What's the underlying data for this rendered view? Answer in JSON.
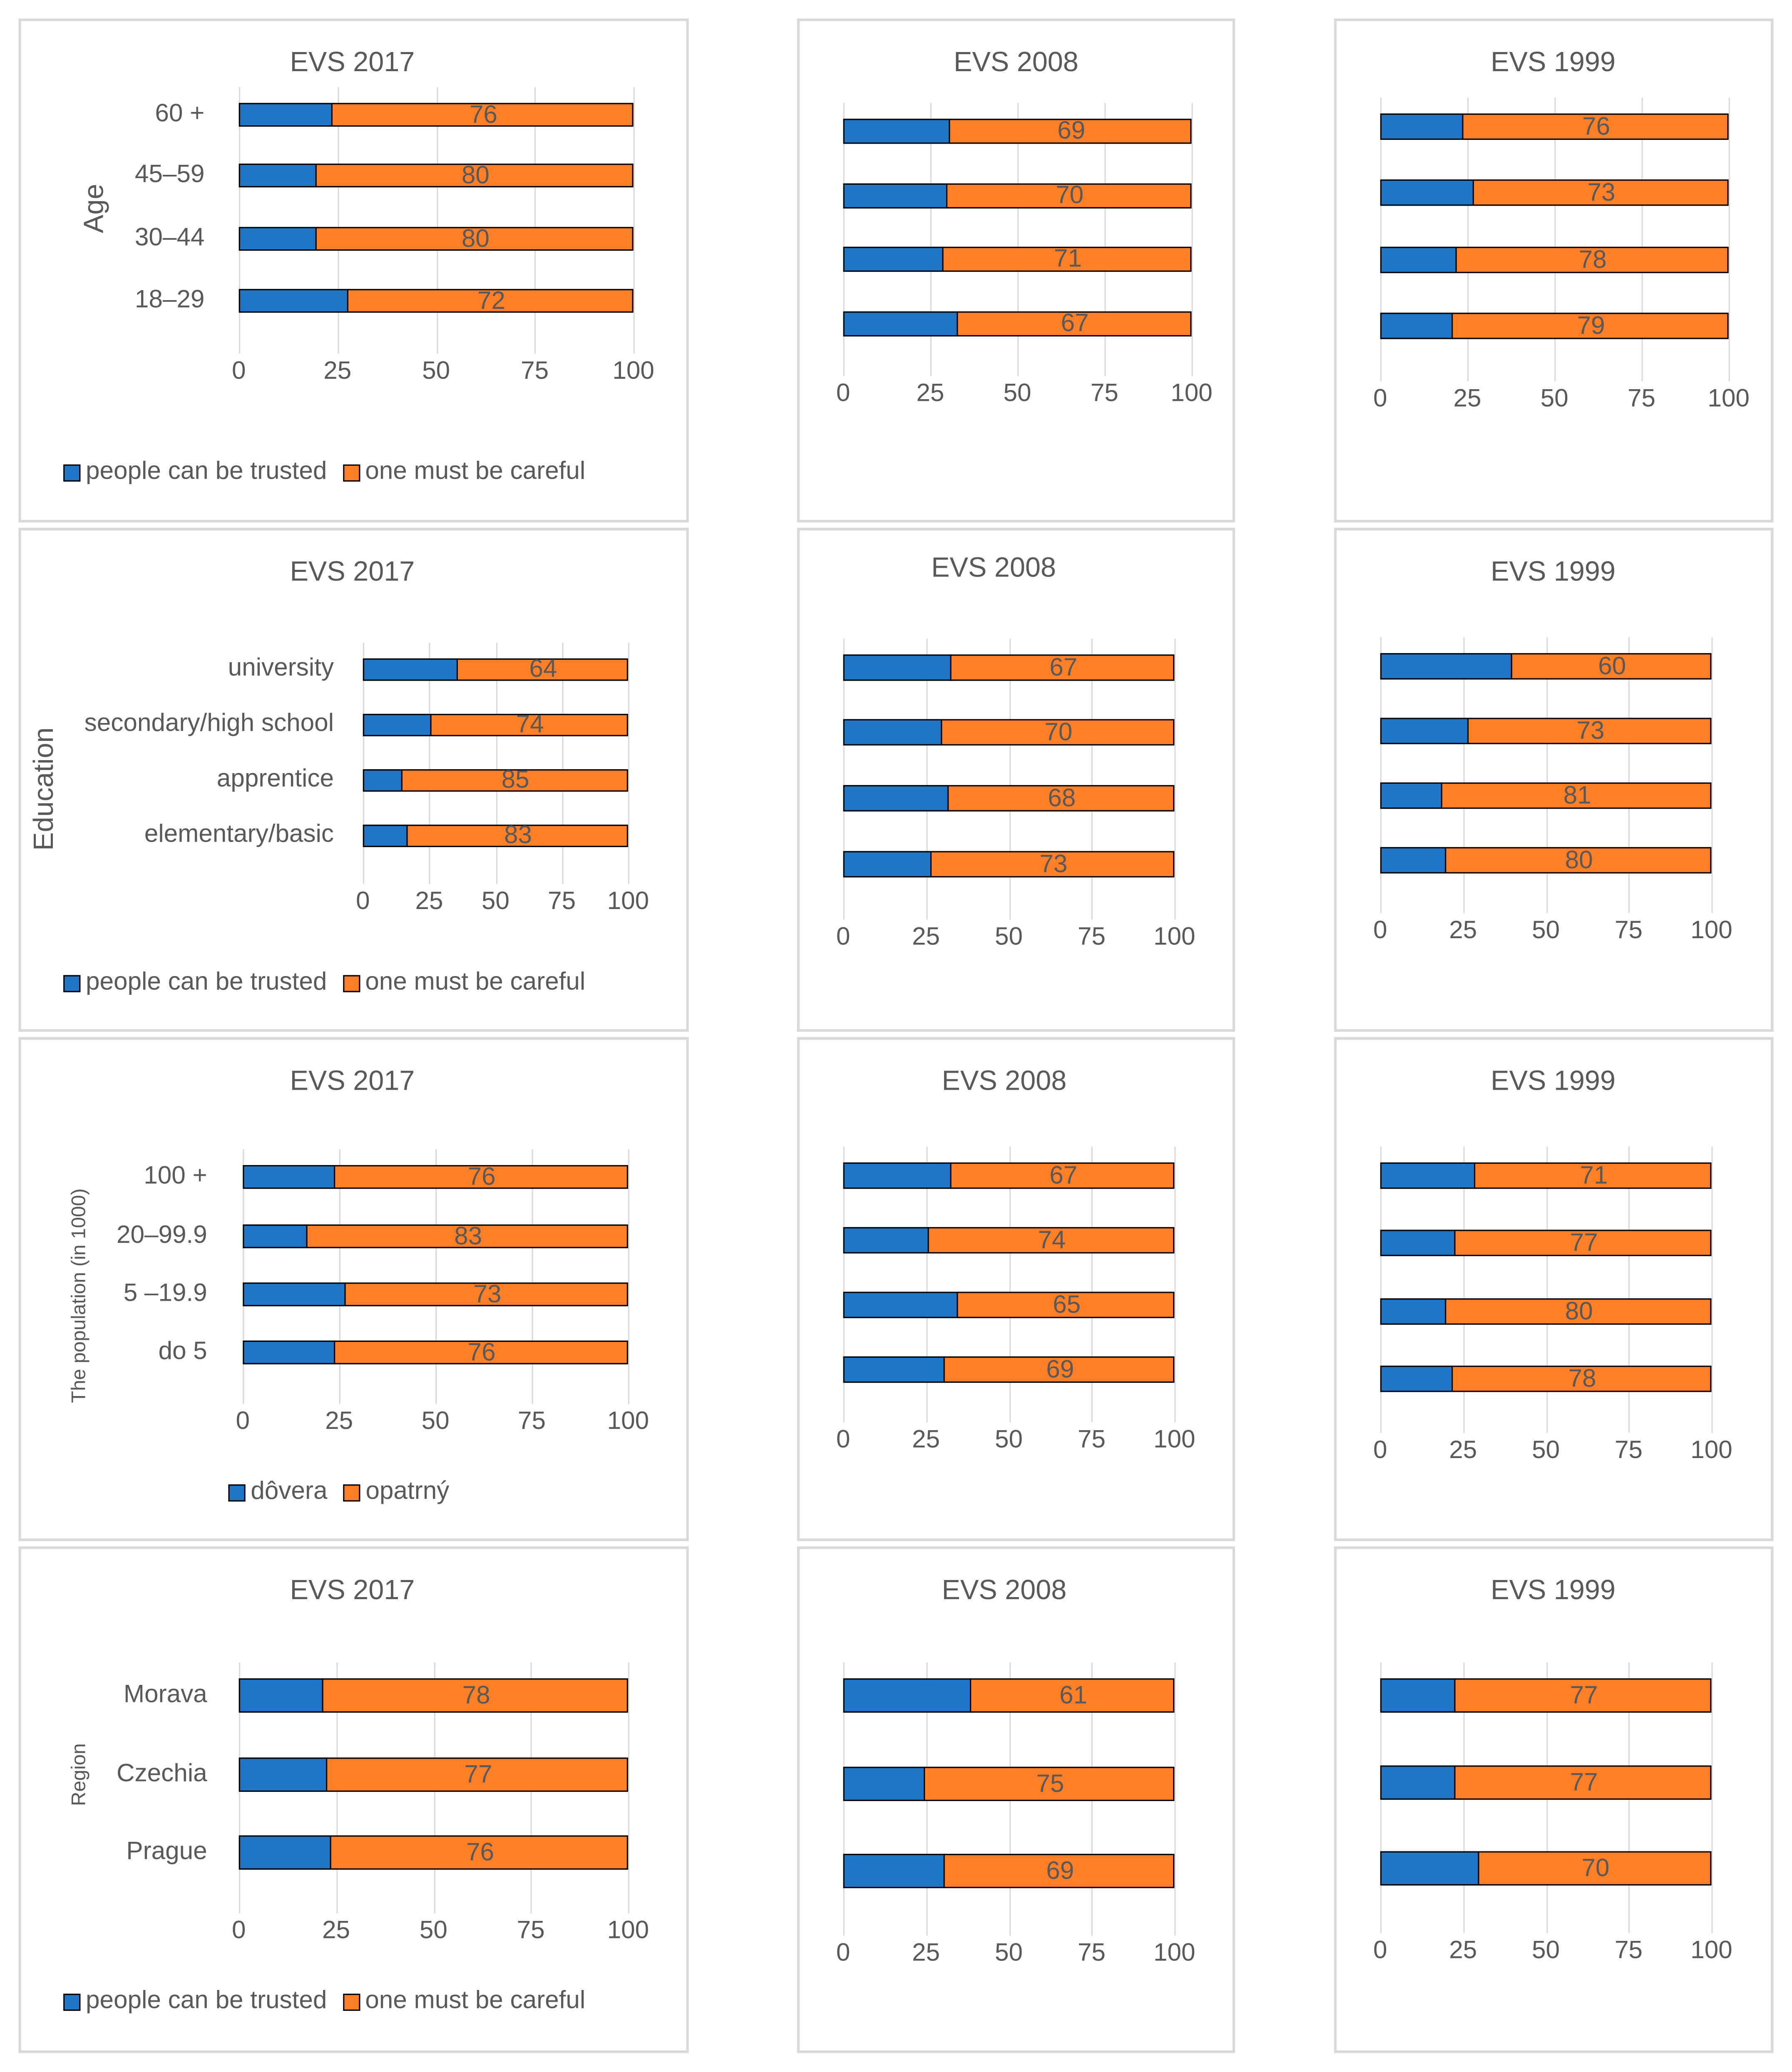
{
  "colors": {
    "trust": "#1f76c6",
    "careful": "#fe7f26"
  },
  "chart_data": [
    {
      "type": "bar",
      "stacked": true,
      "title": "EVS 2017",
      "ylabel": "Age",
      "categories": [
        "60 +",
        "45–59",
        "30–44",
        "18–29"
      ],
      "series": [
        {
          "name": "people can be trusted",
          "values": [
            24,
            20,
            20,
            28
          ]
        },
        {
          "name": "one must be careful",
          "values": [
            76,
            80,
            80,
            72
          ]
        }
      ],
      "xticks": [
        "0",
        "25",
        "50",
        "75",
        "100"
      ],
      "xlim": [
        0,
        100
      ],
      "legend": [
        "people can be trusted",
        "one must be careful"
      ]
    },
    {
      "type": "bar",
      "stacked": true,
      "title": "EVS 2008",
      "ylabel": "",
      "categories": [
        "",
        "",
        "",
        ""
      ],
      "series": [
        {
          "name": "people can be trusted",
          "values": [
            31,
            30,
            29,
            33
          ]
        },
        {
          "name": "one must be careful",
          "values": [
            69,
            70,
            71,
            67
          ]
        }
      ],
      "xticks": [
        "0",
        "25",
        "50",
        "75",
        "100"
      ],
      "xlim": [
        0,
        100
      ]
    },
    {
      "type": "bar",
      "stacked": true,
      "title": "EVS 1999",
      "ylabel": "",
      "categories": [
        "",
        "",
        "",
        ""
      ],
      "series": [
        {
          "name": "people can be trusted",
          "values": [
            24,
            27,
            22,
            21
          ]
        },
        {
          "name": "one must be careful",
          "values": [
            76,
            73,
            78,
            79
          ]
        }
      ],
      "xticks": [
        "0",
        "25",
        "50",
        "75",
        "100"
      ],
      "xlim": [
        0,
        100
      ]
    },
    {
      "type": "bar",
      "stacked": true,
      "title": "EVS 2017",
      "ylabel": "Education",
      "categories": [
        "university",
        "secondary/high school",
        "apprentice",
        "elementary/basic"
      ],
      "series": [
        {
          "name": "people can be trusted",
          "values": [
            36,
            26,
            15,
            17
          ]
        },
        {
          "name": "one must be careful",
          "values": [
            64,
            74,
            85,
            83
          ]
        }
      ],
      "xticks": [
        "0",
        "25",
        "50",
        "75",
        "100"
      ],
      "xlim": [
        0,
        100
      ],
      "legend": [
        "people can be trusted",
        "one must be careful"
      ]
    },
    {
      "type": "bar",
      "stacked": true,
      "title": "EVS 2008",
      "ylabel": "",
      "categories": [
        "",
        "",
        "",
        ""
      ],
      "series": [
        {
          "name": "people can be trusted",
          "values": [
            33,
            30,
            32,
            27
          ]
        },
        {
          "name": "one must be careful",
          "values": [
            67,
            70,
            68,
            73
          ]
        }
      ],
      "xticks": [
        "0",
        "25",
        "50",
        "75",
        "100"
      ],
      "xlim": [
        0,
        100
      ]
    },
    {
      "type": "bar",
      "stacked": true,
      "title": "EVS 1999",
      "ylabel": "",
      "categories": [
        "",
        "",
        "",
        ""
      ],
      "series": [
        {
          "name": "people can be trusted",
          "values": [
            40,
            27,
            19,
            20
          ]
        },
        {
          "name": "one must be careful",
          "values": [
            60,
            73,
            81,
            80
          ]
        }
      ],
      "xticks": [
        "0",
        "25",
        "50",
        "75",
        "100"
      ],
      "xlim": [
        0,
        100
      ]
    },
    {
      "type": "bar",
      "stacked": true,
      "title": "EVS 2017",
      "ylabel": "The population (in 1000)",
      "categories": [
        "100 +",
        "20–99.9",
        "5 –19.9",
        "do 5"
      ],
      "series": [
        {
          "name": "dôvera",
          "values": [
            24,
            17,
            27,
            24
          ]
        },
        {
          "name": "opatrný",
          "values": [
            76,
            83,
            73,
            76
          ]
        }
      ],
      "xticks": [
        "0",
        "25",
        "50",
        "75",
        "100"
      ],
      "xlim": [
        0,
        100
      ],
      "legend": [
        "dôvera",
        "opatrný"
      ]
    },
    {
      "type": "bar",
      "stacked": true,
      "title": "EVS 2008",
      "ylabel": "",
      "categories": [
        "",
        "",
        "",
        ""
      ],
      "series": [
        {
          "name": "people can be trusted",
          "values": [
            33,
            26,
            35,
            31
          ]
        },
        {
          "name": "one must be careful",
          "values": [
            67,
            74,
            65,
            69
          ]
        }
      ],
      "xticks": [
        "0",
        "25",
        "50",
        "75",
        "100"
      ],
      "xlim": [
        0,
        100
      ]
    },
    {
      "type": "bar",
      "stacked": true,
      "title": "EVS 1999",
      "ylabel": "",
      "categories": [
        "",
        "",
        "",
        ""
      ],
      "series": [
        {
          "name": "people can be trusted",
          "values": [
            29,
            23,
            20,
            22
          ]
        },
        {
          "name": "one must be careful",
          "values": [
            71,
            77,
            80,
            78
          ]
        }
      ],
      "xticks": [
        "0",
        "25",
        "50",
        "75",
        "100"
      ],
      "xlim": [
        0,
        100
      ]
    },
    {
      "type": "bar",
      "stacked": true,
      "title": "EVS 2017",
      "ylabel": "Region",
      "categories": [
        "Morava",
        "Czechia",
        "Prague"
      ],
      "series": [
        {
          "name": "people can be trusted",
          "values": [
            22,
            23,
            24
          ]
        },
        {
          "name": "one must be careful",
          "values": [
            78,
            77,
            76
          ]
        }
      ],
      "xticks": [
        "0",
        "25",
        "50",
        "75",
        "100"
      ],
      "xlim": [
        0,
        100
      ],
      "legend": [
        "people can be trusted",
        "one must be careful"
      ]
    },
    {
      "type": "bar",
      "stacked": true,
      "title": "EVS 2008",
      "ylabel": "",
      "categories": [
        "",
        "",
        ""
      ],
      "series": [
        {
          "name": "people can be trusted",
          "values": [
            39,
            25,
            31
          ]
        },
        {
          "name": "one must be careful",
          "values": [
            61,
            75,
            69
          ]
        }
      ],
      "xticks": [
        "0",
        "25",
        "50",
        "75",
        "100"
      ],
      "xlim": [
        0,
        100
      ]
    },
    {
      "type": "bar",
      "stacked": true,
      "title": "EVS 1999",
      "ylabel": "",
      "categories": [
        "",
        "",
        ""
      ],
      "series": [
        {
          "name": "people can be trusted",
          "values": [
            23,
            23,
            30
          ]
        },
        {
          "name": "one must be careful",
          "values": [
            77,
            77,
            70
          ]
        }
      ],
      "xticks": [
        "0",
        "25",
        "50",
        "75",
        "100"
      ],
      "xlim": [
        0,
        100
      ]
    }
  ]
}
